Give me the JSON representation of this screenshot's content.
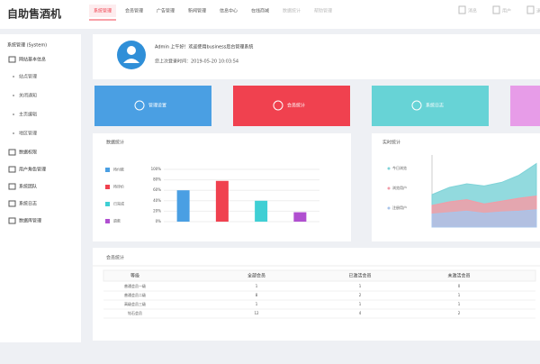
{
  "header": {
    "logo": "自助售酒机",
    "nav": [
      "系统管理",
      "会员管理",
      "广告管理",
      "新闻管理",
      "信息中心",
      "在线商城",
      "数据统计",
      "帮助管理"
    ],
    "tools": [
      "消息",
      "用户",
      "退出"
    ]
  },
  "sidebar": {
    "title": "系统管理 (System)",
    "items": [
      {
        "label": "网站基本信息",
        "children": [
          "站点管理",
          "关闭通知",
          "主页编辑",
          "地区管理"
        ]
      },
      {
        "label": "数据权限"
      },
      {
        "label": "用户角色管理"
      },
      {
        "label": "系统团队"
      },
      {
        "label": "系统日志"
      },
      {
        "label": "数据库管理"
      }
    ]
  },
  "welcome": {
    "greeting": "Admin 上午好！欢迎使用business后台管理系统",
    "last_login": "您上次登录时间：2019-05-20 10:03:54"
  },
  "cards": [
    "管理设置",
    "会员统计",
    "系统日志",
    null
  ],
  "bar_chart": {
    "type": "bar",
    "title": "数据统计",
    "categories": [
      "待付款",
      "待评价",
      "已完成",
      "退款"
    ],
    "values": [
      60,
      78,
      40,
      18
    ],
    "colors": [
      "#4a9fe3",
      "#f0414f",
      "#3fcfd4",
      "#b04fd0"
    ],
    "ylim": [
      0,
      100
    ],
    "yticks": [
      {
        "value": 0,
        "label": "0%"
      },
      {
        "value": 20,
        "label": "20%"
      },
      {
        "value": 40,
        "label": "40%"
      },
      {
        "value": 60,
        "label": "60%"
      },
      {
        "value": 80,
        "label": "80%"
      },
      {
        "value": 100,
        "label": "100%"
      }
    ],
    "grid": true
  },
  "area_chart": {
    "type": "area",
    "title": "实时统计",
    "categories": [
      null,
      null,
      null,
      null,
      null,
      null,
      null
    ],
    "ylim": [
      0,
      100
    ],
    "series": [
      {
        "name": "今日浏览",
        "color": "#7fd3d8",
        "values": [
          45,
          55,
          60,
          57,
          62,
          72,
          88
        ]
      },
      {
        "name": "浏览用户",
        "color": "#f29ca7",
        "values": [
          30,
          35,
          38,
          32,
          36,
          40,
          43
        ]
      },
      {
        "name": "注册用户",
        "color": "#a9c4ea",
        "values": [
          18,
          20,
          22,
          19,
          21,
          22,
          24
        ]
      }
    ]
  },
  "table": {
    "title": "会员统计",
    "columns": [
      "等级",
      "全部会员",
      "已激活会员",
      "未激活会员"
    ],
    "rows": [
      [
        "普通会员一级",
        "1",
        "1",
        "0"
      ],
      [
        "普通会员二级",
        "8",
        "2",
        "1"
      ],
      [
        "高级会员三级",
        "1",
        "1",
        "1"
      ],
      [
        "钻石会员",
        "12",
        "4",
        "2"
      ]
    ]
  }
}
